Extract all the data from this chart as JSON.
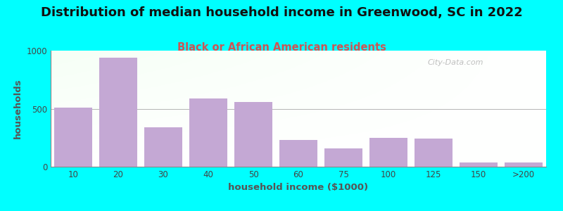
{
  "title": "Distribution of median household income in Greenwood, SC in 2022",
  "subtitle": "Black or African American residents",
  "xlabel": "household income ($1000)",
  "ylabel": "households",
  "background_outer": "#00FFFF",
  "bar_color": "#C4A8D4",
  "categories": [
    "10",
    "20",
    "30",
    "40",
    "50",
    "60",
    "75",
    "100",
    "125",
    "150",
    ">200"
  ],
  "values": [
    510,
    940,
    340,
    590,
    560,
    230,
    155,
    250,
    240,
    35,
    35
  ],
  "ylim": [
    0,
    1000
  ],
  "yticks": [
    0,
    500,
    1000
  ],
  "title_fontsize": 13,
  "subtitle_fontsize": 10.5,
  "axis_label_fontsize": 9.5,
  "tick_fontsize": 8.5,
  "watermark_text": "City-Data.com",
  "title_color": "#111111",
  "subtitle_color": "#CC5555",
  "ylabel_color": "#555555",
  "xlabel_color": "#555555"
}
